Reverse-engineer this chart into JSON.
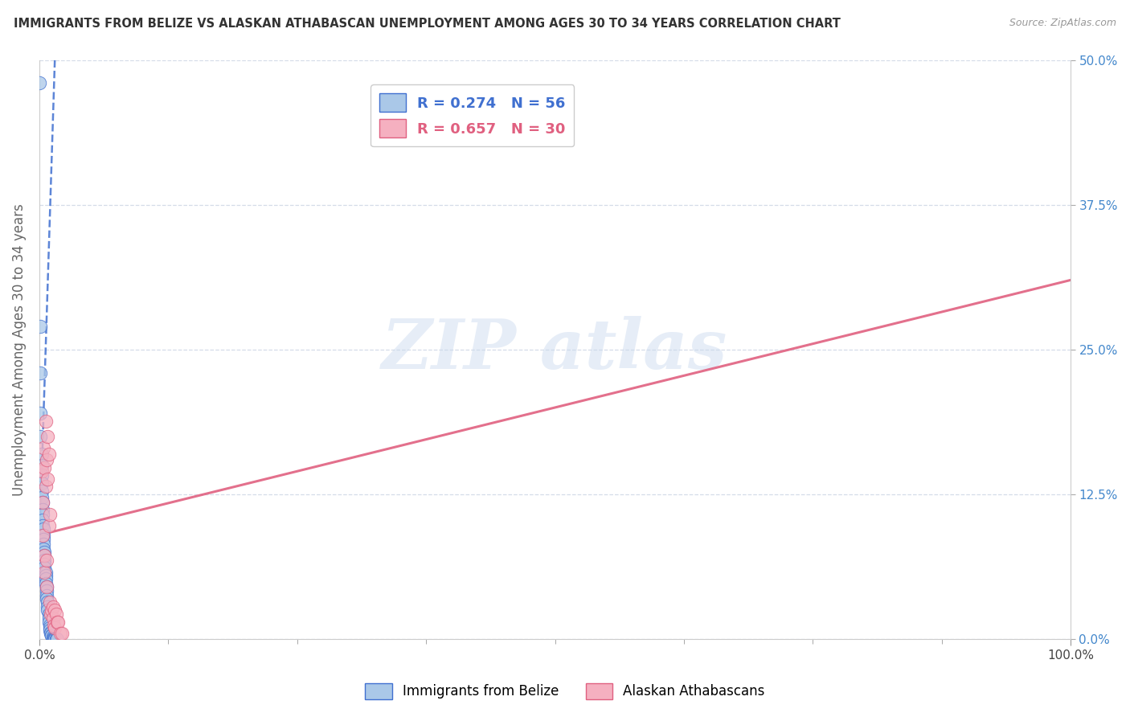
{
  "title": "IMMIGRANTS FROM BELIZE VS ALASKAN ATHABASCAN UNEMPLOYMENT AMONG AGES 30 TO 34 YEARS CORRELATION CHART",
  "source": "Source: ZipAtlas.com",
  "ylabel": "Unemployment Among Ages 30 to 34 years",
  "blue_R": "R = 0.274",
  "blue_N": "N = 56",
  "pink_R": "R = 0.657",
  "pink_N": "N = 30",
  "blue_color": "#aac8e8",
  "pink_color": "#f5b0c0",
  "blue_line_color": "#4070d0",
  "pink_line_color": "#e06080",
  "blue_dots": [
    [
      0.0,
      0.48
    ],
    [
      0.001,
      0.27
    ],
    [
      0.001,
      0.23
    ],
    [
      0.001,
      0.195
    ],
    [
      0.001,
      0.175
    ],
    [
      0.002,
      0.16
    ],
    [
      0.002,
      0.15
    ],
    [
      0.002,
      0.142
    ],
    [
      0.002,
      0.135
    ],
    [
      0.002,
      0.128
    ],
    [
      0.002,
      0.122
    ],
    [
      0.003,
      0.118
    ],
    [
      0.003,
      0.112
    ],
    [
      0.003,
      0.108
    ],
    [
      0.003,
      0.103
    ],
    [
      0.003,
      0.098
    ],
    [
      0.004,
      0.095
    ],
    [
      0.004,
      0.09
    ],
    [
      0.004,
      0.086
    ],
    [
      0.004,
      0.082
    ],
    [
      0.004,
      0.078
    ],
    [
      0.005,
      0.075
    ],
    [
      0.005,
      0.072
    ],
    [
      0.005,
      0.068
    ],
    [
      0.005,
      0.065
    ],
    [
      0.005,
      0.062
    ],
    [
      0.006,
      0.058
    ],
    [
      0.006,
      0.055
    ],
    [
      0.006,
      0.052
    ],
    [
      0.006,
      0.048
    ],
    [
      0.007,
      0.045
    ],
    [
      0.007,
      0.042
    ],
    [
      0.007,
      0.038
    ],
    [
      0.007,
      0.035
    ],
    [
      0.008,
      0.032
    ],
    [
      0.008,
      0.028
    ],
    [
      0.008,
      0.025
    ],
    [
      0.009,
      0.022
    ],
    [
      0.009,
      0.018
    ],
    [
      0.009,
      0.015
    ],
    [
      0.01,
      0.012
    ],
    [
      0.01,
      0.01
    ],
    [
      0.01,
      0.008
    ],
    [
      0.011,
      0.006
    ],
    [
      0.011,
      0.005
    ],
    [
      0.012,
      0.004
    ],
    [
      0.012,
      0.003
    ],
    [
      0.013,
      0.002
    ],
    [
      0.013,
      0.001
    ],
    [
      0.014,
      0.001
    ],
    [
      0.014,
      0.0
    ],
    [
      0.015,
      0.0
    ],
    [
      0.015,
      0.0
    ],
    [
      0.016,
      0.0
    ],
    [
      0.016,
      0.0
    ],
    [
      0.017,
      0.0
    ]
  ],
  "pink_dots": [
    [
      0.002,
      0.145
    ],
    [
      0.003,
      0.118
    ],
    [
      0.003,
      0.09
    ],
    [
      0.004,
      0.165
    ],
    [
      0.005,
      0.148
    ],
    [
      0.005,
      0.072
    ],
    [
      0.005,
      0.058
    ],
    [
      0.006,
      0.188
    ],
    [
      0.006,
      0.132
    ],
    [
      0.007,
      0.155
    ],
    [
      0.007,
      0.068
    ],
    [
      0.007,
      0.045
    ],
    [
      0.008,
      0.175
    ],
    [
      0.008,
      0.138
    ],
    [
      0.009,
      0.16
    ],
    [
      0.009,
      0.098
    ],
    [
      0.01,
      0.108
    ],
    [
      0.01,
      0.032
    ],
    [
      0.011,
      0.022
    ],
    [
      0.012,
      0.025
    ],
    [
      0.013,
      0.028
    ],
    [
      0.013,
      0.018
    ],
    [
      0.014,
      0.012
    ],
    [
      0.015,
      0.025
    ],
    [
      0.015,
      0.01
    ],
    [
      0.016,
      0.022
    ],
    [
      0.017,
      0.015
    ],
    [
      0.018,
      0.015
    ],
    [
      0.02,
      0.005
    ],
    [
      0.022,
      0.005
    ]
  ],
  "background_color": "#ffffff",
  "grid_color": "#d5dce8",
  "watermark_text": "ZIP atlas",
  "xlim": [
    0.0,
    1.0
  ],
  "ylim": [
    0.0,
    0.5
  ],
  "yticks": [
    0.0,
    0.125,
    0.25,
    0.375,
    0.5
  ],
  "ytick_labels": [
    "0.0%",
    "12.5%",
    "25.0%",
    "37.5%",
    "50.0%"
  ],
  "xtick_labels_show": [
    "0.0%",
    "100.0%"
  ],
  "xtick_positions_show": [
    0.0,
    1.0
  ],
  "xtick_minor_positions": [
    0.125,
    0.25,
    0.375,
    0.5,
    0.625,
    0.75,
    0.875
  ],
  "blue_trend_slope": 28.0,
  "blue_trend_intercept": 0.08,
  "pink_trend_slope": 0.22,
  "pink_trend_intercept": 0.09
}
